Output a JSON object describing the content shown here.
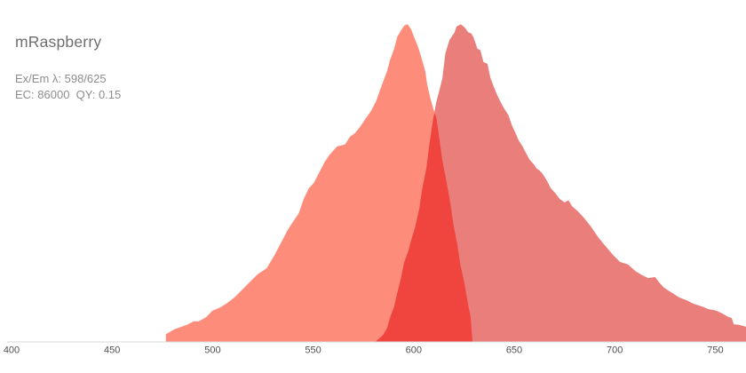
{
  "header": {
    "title": "mRaspberry",
    "ex_em_label": "Ex/Em λ: 598/625",
    "ec_qy_label": "EC: 86000  QY: 0.15"
  },
  "colors": {
    "excitation_fill": "#FE8C7B",
    "emission_fill": "#E97E7B",
    "overlap_fill": "#F0453F",
    "axis_line": "#D9D9D9",
    "tick_label": "#4F4F4F",
    "title_text": "#6E6E6E",
    "subtitle_text": "#8D8D8D",
    "background": "#FFFFFF"
  },
  "chart_data": {
    "type": "area",
    "title": "mRaspberry excitation/emission spectra",
    "xlabel": "",
    "ylabel": "",
    "xlim": [
      400,
      765
    ],
    "ylim": [
      0,
      1
    ],
    "grid": false,
    "legend": "none",
    "x_ticks": [
      400,
      450,
      500,
      550,
      600,
      650,
      700,
      750
    ],
    "series": [
      {
        "name": "excitation",
        "points": [
          [
            477.0,
            0.022
          ],
          [
            481.0,
            0.037
          ],
          [
            484.5,
            0.045
          ],
          [
            488.0,
            0.053
          ],
          [
            490.5,
            0.062
          ],
          [
            493.0,
            0.062
          ],
          [
            497.0,
            0.076
          ],
          [
            500.0,
            0.096
          ],
          [
            504.0,
            0.107
          ],
          [
            507.5,
            0.121
          ],
          [
            511.0,
            0.138
          ],
          [
            514.5,
            0.16
          ],
          [
            518.0,
            0.183
          ],
          [
            522.5,
            0.211
          ],
          [
            527.0,
            0.23
          ],
          [
            531.0,
            0.272
          ],
          [
            535.0,
            0.32
          ],
          [
            537.5,
            0.351
          ],
          [
            540.0,
            0.376
          ],
          [
            543.0,
            0.404
          ],
          [
            545.5,
            0.449
          ],
          [
            548.0,
            0.483
          ],
          [
            550.5,
            0.5
          ],
          [
            553.5,
            0.536
          ],
          [
            556.0,
            0.567
          ],
          [
            558.5,
            0.59
          ],
          [
            562.0,
            0.615
          ],
          [
            566.0,
            0.621
          ],
          [
            568.5,
            0.646
          ],
          [
            571.0,
            0.657
          ],
          [
            573.5,
            0.677
          ],
          [
            576.5,
            0.705
          ],
          [
            579.0,
            0.728
          ],
          [
            581.5,
            0.758
          ],
          [
            584.0,
            0.803
          ],
          [
            587.0,
            0.854
          ],
          [
            588.5,
            0.89
          ],
          [
            590.5,
            0.924
          ],
          [
            592.0,
            0.961
          ],
          [
            594.0,
            0.983
          ],
          [
            595.5,
            0.997
          ],
          [
            597.0,
            1.0
          ],
          [
            598.5,
            0.986
          ],
          [
            600.0,
            0.961
          ],
          [
            602.0,
            0.93
          ],
          [
            603.5,
            0.899
          ],
          [
            605.5,
            0.854
          ],
          [
            606.5,
            0.812
          ],
          [
            608.0,
            0.77
          ],
          [
            609.5,
            0.736
          ],
          [
            611.0,
            0.708
          ],
          [
            612.5,
            0.643
          ],
          [
            614.0,
            0.573
          ],
          [
            616.0,
            0.508
          ],
          [
            618.0,
            0.438
          ],
          [
            619.5,
            0.371
          ],
          [
            621.5,
            0.306
          ],
          [
            623.0,
            0.242
          ],
          [
            625.0,
            0.185
          ],
          [
            626.5,
            0.129
          ],
          [
            628.0,
            0.081
          ],
          [
            628.5,
            0.045
          ],
          [
            629.0,
            0.0
          ]
        ]
      },
      {
        "name": "emission",
        "points": [
          [
            581.5,
            0.0
          ],
          [
            583.5,
            0.011
          ],
          [
            585.0,
            0.02
          ],
          [
            587.0,
            0.042
          ],
          [
            588.5,
            0.076
          ],
          [
            590.5,
            0.11
          ],
          [
            592.0,
            0.152
          ],
          [
            594.0,
            0.202
          ],
          [
            595.5,
            0.25
          ],
          [
            597.5,
            0.284
          ],
          [
            599.0,
            0.32
          ],
          [
            601.0,
            0.362
          ],
          [
            603.0,
            0.419
          ],
          [
            604.5,
            0.483
          ],
          [
            606.5,
            0.545
          ],
          [
            608.0,
            0.621
          ],
          [
            610.0,
            0.705
          ],
          [
            611.5,
            0.756
          ],
          [
            613.5,
            0.806
          ],
          [
            614.5,
            0.831
          ],
          [
            616.0,
            0.91
          ],
          [
            618.0,
            0.952
          ],
          [
            620.5,
            0.975
          ],
          [
            621.5,
            0.994
          ],
          [
            623.5,
            1.0
          ],
          [
            625.5,
            0.989
          ],
          [
            627.0,
            0.975
          ],
          [
            628.5,
            0.972
          ],
          [
            629.5,
            0.961
          ],
          [
            631.5,
            0.924
          ],
          [
            633.0,
            0.919
          ],
          [
            634.5,
            0.882
          ],
          [
            636.5,
            0.876
          ],
          [
            638.0,
            0.831
          ],
          [
            640.0,
            0.798
          ],
          [
            641.5,
            0.775
          ],
          [
            643.5,
            0.75
          ],
          [
            645.0,
            0.733
          ],
          [
            647.0,
            0.713
          ],
          [
            648.5,
            0.685
          ],
          [
            650.5,
            0.657
          ],
          [
            652.0,
            0.635
          ],
          [
            654.0,
            0.615
          ],
          [
            655.5,
            0.596
          ],
          [
            657.5,
            0.573
          ],
          [
            659.5,
            0.559
          ],
          [
            661.0,
            0.545
          ],
          [
            662.5,
            0.539
          ],
          [
            664.0,
            0.528
          ],
          [
            666.0,
            0.508
          ],
          [
            668.0,
            0.483
          ],
          [
            670.5,
            0.466
          ],
          [
            672.5,
            0.449
          ],
          [
            675.0,
            0.438
          ],
          [
            677.0,
            0.444
          ],
          [
            678.5,
            0.427
          ],
          [
            681.5,
            0.41
          ],
          [
            684.5,
            0.39
          ],
          [
            688.0,
            0.362
          ],
          [
            691.5,
            0.329
          ],
          [
            694.5,
            0.306
          ],
          [
            699.0,
            0.272
          ],
          [
            702.5,
            0.25
          ],
          [
            706.5,
            0.242
          ],
          [
            710.0,
            0.222
          ],
          [
            713.5,
            0.208
          ],
          [
            716.5,
            0.199
          ],
          [
            720.0,
            0.202
          ],
          [
            722.0,
            0.185
          ],
          [
            724.0,
            0.171
          ],
          [
            726.5,
            0.16
          ],
          [
            728.5,
            0.152
          ],
          [
            732.0,
            0.138
          ],
          [
            735.5,
            0.129
          ],
          [
            739.0,
            0.118
          ],
          [
            743.0,
            0.11
          ],
          [
            746.5,
            0.101
          ],
          [
            750.5,
            0.096
          ],
          [
            753.5,
            0.087
          ],
          [
            756.5,
            0.076
          ],
          [
            758.0,
            0.073
          ],
          [
            759.0,
            0.053
          ],
          [
            762.0,
            0.051
          ],
          [
            766.0,
            0.044
          ]
        ]
      }
    ]
  }
}
